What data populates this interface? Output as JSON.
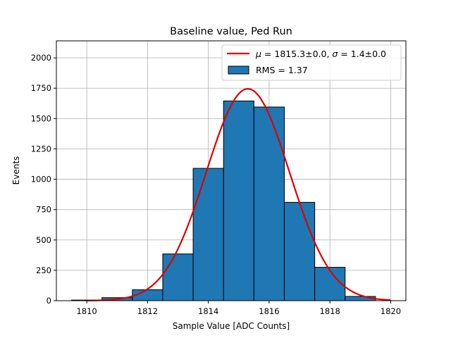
{
  "chart_data": {
    "type": "bar",
    "title": "Baseline value, Ped Run",
    "xlabel": "Sample Value [ADC Counts]",
    "ylabel": "Events",
    "xlim": [
      1809.0,
      1820.5
    ],
    "ylim": [
      0,
      2140
    ],
    "xticks": [
      1810,
      1812,
      1814,
      1816,
      1818,
      1820
    ],
    "yticks": [
      0,
      250,
      500,
      750,
      1000,
      1250,
      1500,
      1750,
      2000
    ],
    "grid": true,
    "legend_position": "top-right",
    "histogram": {
      "bin_edges": [
        1809.5,
        1810.5,
        1811.5,
        1812.5,
        1813.5,
        1814.5,
        1815.5,
        1816.5,
        1817.5,
        1818.5,
        1819.5
      ],
      "counts": [
        5,
        25,
        90,
        385,
        1090,
        1645,
        1595,
        810,
        275,
        35
      ],
      "color": "#1f77b4",
      "edgecolor": "#000000",
      "legend_label": "RMS = 1.37"
    },
    "fit": {
      "type": "gaussian",
      "mean": 1815.3,
      "sigma": 1.37,
      "amplitude": 1745,
      "x_range": [
        1810,
        1820
      ],
      "color": "#e00000",
      "legend_label_parts": {
        "mu_symbol": "μ",
        "mean_text": " = 1815.3±0.0, ",
        "sigma_symbol": "σ",
        "sigma_text": " = 1.4±0.0"
      }
    }
  }
}
